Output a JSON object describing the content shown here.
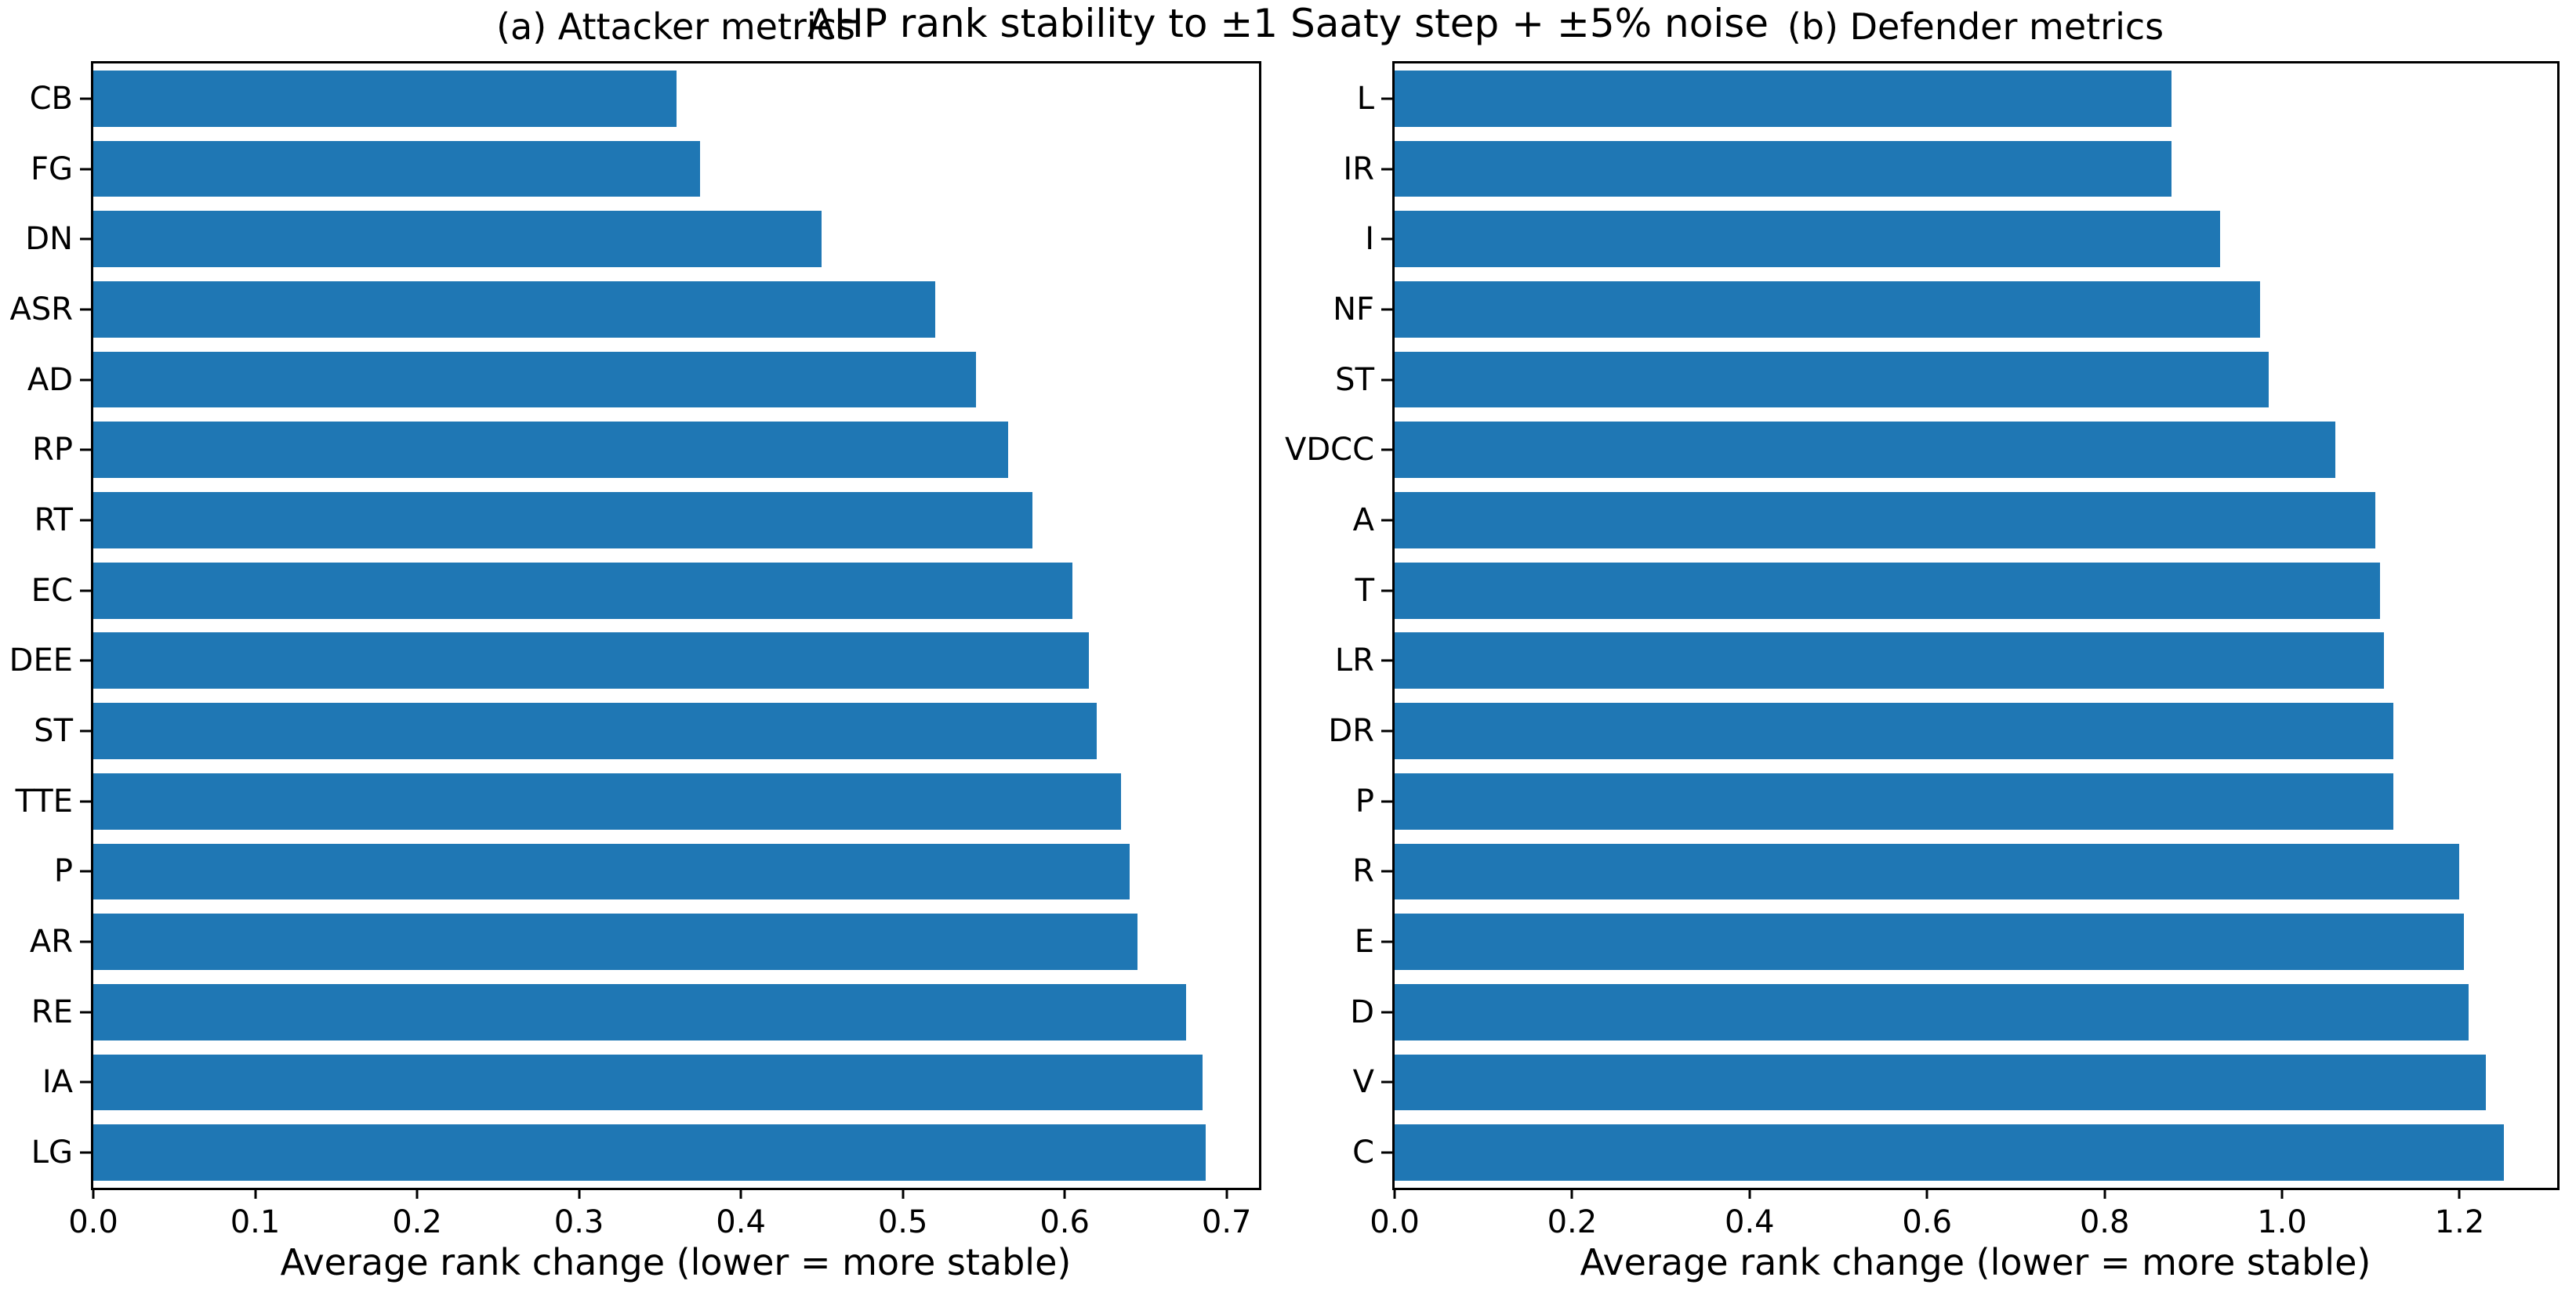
{
  "suptitle": "AHP rank stability to ±1 Saaty step + ±5% noise",
  "bar_color": "#1f77b4",
  "chart_data": [
    {
      "type": "bar",
      "orientation": "horizontal",
      "title": "(a) Attacker metrics",
      "xlabel": "Average rank change (lower = more stable)",
      "categories": [
        "CB",
        "FG",
        "DN",
        "ASR",
        "AD",
        "RP",
        "RT",
        "EC",
        "DEE",
        "ST",
        "TTE",
        "P",
        "AR",
        "RE",
        "IA",
        "LG"
      ],
      "values": [
        0.36,
        0.375,
        0.45,
        0.52,
        0.545,
        0.565,
        0.58,
        0.605,
        0.615,
        0.62,
        0.635,
        0.64,
        0.645,
        0.675,
        0.685,
        0.687
      ],
      "xlim": [
        0,
        0.72
      ],
      "xticks": [
        0.0,
        0.1,
        0.2,
        0.3,
        0.4,
        0.5,
        0.6,
        0.7
      ],
      "xtick_labels": [
        "0.0",
        "0.1",
        "0.2",
        "0.3",
        "0.4",
        "0.5",
        "0.6",
        "0.7"
      ],
      "grid": false,
      "legend": null,
      "bar_fraction": 0.8
    },
    {
      "type": "bar",
      "orientation": "horizontal",
      "title": "(b) Defender metrics",
      "xlabel": "Average rank change (lower = more stable)",
      "categories": [
        "L",
        "IR",
        "I",
        "NF",
        "ST",
        "VDCC",
        "A",
        "T",
        "LR",
        "DR",
        "P",
        "R",
        "E",
        "D",
        "V",
        "C"
      ],
      "values": [
        0.875,
        0.875,
        0.93,
        0.975,
        0.985,
        1.06,
        1.105,
        1.11,
        1.115,
        1.125,
        1.125,
        1.2,
        1.205,
        1.21,
        1.23,
        1.25
      ],
      "xlim": [
        0,
        1.31
      ],
      "xticks": [
        0.0,
        0.2,
        0.4,
        0.6,
        0.8,
        1.0,
        1.2
      ],
      "xtick_labels": [
        "0.0",
        "0.2",
        "0.4",
        "0.6",
        "0.8",
        "1.0",
        "1.2"
      ],
      "grid": false,
      "legend": null,
      "bar_fraction": 0.8
    }
  ]
}
